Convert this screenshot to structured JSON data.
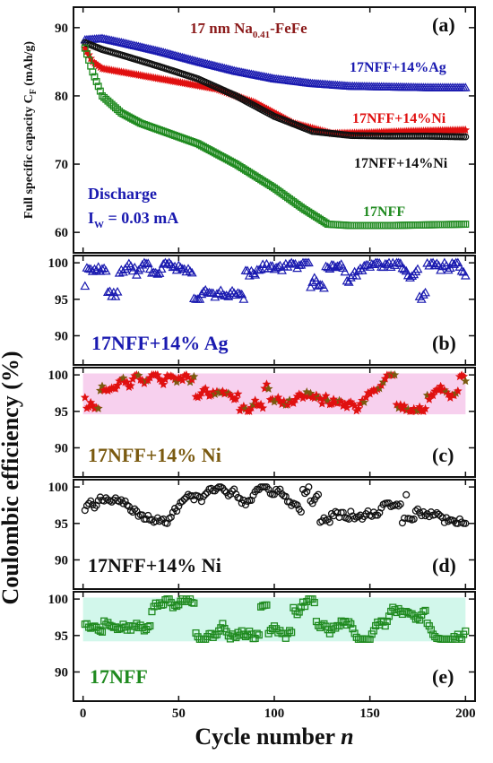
{
  "figure": {
    "ylabel_main": "Coulombic efficiency (%)",
    "xlabel_prefix": "Cycle number ",
    "xlabel_var": "n",
    "x_ticks": [
      "0",
      "50",
      "100",
      "150",
      "200"
    ]
  },
  "colors": {
    "blue": "#1a1ab0",
    "red": "#e01010",
    "black": "#111111",
    "green": "#1f8a1f",
    "darkred": "#8b1a1a",
    "olive": "#7a5a10",
    "pink_band": "#f4c0e8",
    "mint_band": "#bff3e3"
  },
  "panel_a": {
    "title_main": "17 nm Na",
    "title_sub": "0.41",
    "title_rest": "-FeFe",
    "letter": "(a)",
    "ylabel_main": "Full specific capacity C",
    "ylabel_sub": "F",
    "ylabel_unit": " (mAh/g)",
    "discharge_label": "Discharge",
    "current_label_main": "I",
    "current_label_sub": "W",
    "current_label_rest": " = 0.03 mA",
    "y_ticks": [
      "60",
      "70",
      "80",
      "90"
    ],
    "series_labels": {
      "ag": "17NFF+14%Ag",
      "ni_red": "17NFF+14%Ni",
      "ni_black": "17NFF+14%Ni",
      "nff": "17NFF"
    }
  },
  "panel_b": {
    "label": "17NFF+14% Ag",
    "letter": "(b)",
    "y_ticks": [
      "90",
      "95",
      "100"
    ]
  },
  "panel_c": {
    "label": "17NFF+14% Ni",
    "letter": "(c)",
    "y_ticks": [
      "90",
      "95",
      "100"
    ]
  },
  "panel_d": {
    "label": "17NFF+14% Ni",
    "letter": "(d)",
    "y_ticks": [
      "90",
      "95",
      "100"
    ]
  },
  "panel_e": {
    "label": "17NFF",
    "letter": "(e)",
    "y_ticks": [
      "90",
      "95",
      "100"
    ]
  },
  "chart_data": [
    {
      "type": "scatter",
      "panel": "a",
      "title": "17 nm Na0.41-FeFe",
      "xlabel": "Cycle number n",
      "ylabel": "Full specific capacity CF (mAh/g)",
      "xlim": [
        -5,
        205
      ],
      "ylim": [
        57,
        93
      ],
      "series": [
        {
          "name": "17NFF+14%Ag",
          "marker": "triangle",
          "color": "#1a1ab0",
          "x": [
            1,
            10,
            20,
            40,
            60,
            80,
            100,
            120,
            140,
            160,
            180,
            200
          ],
          "y": [
            88.2,
            88.4,
            87.8,
            86.5,
            85.0,
            83.6,
            82.5,
            81.8,
            81.4,
            81.3,
            81.2,
            81.2
          ]
        },
        {
          "name": "17NFF+14%Ni",
          "marker": "star",
          "color": "#e01010",
          "x": [
            1,
            5,
            10,
            20,
            30,
            50,
            70,
            90,
            110,
            130,
            150,
            170,
            200
          ],
          "y": [
            87.0,
            85.0,
            84.0,
            83.5,
            83.0,
            82.0,
            81.0,
            79.0,
            76.0,
            74.5,
            74.6,
            74.8,
            75.0
          ]
        },
        {
          "name": "17NFF+14%Ni",
          "marker": "circle",
          "color": "#111111",
          "x": [
            1,
            10,
            20,
            40,
            60,
            80,
            100,
            120,
            140,
            160,
            180,
            200
          ],
          "y": [
            87.8,
            86.8,
            86.0,
            84.3,
            82.5,
            80.0,
            77.0,
            74.8,
            74.2,
            74.1,
            74.1,
            74.0
          ]
        },
        {
          "name": "17NFF",
          "marker": "square",
          "color": "#1f8a1f",
          "x": [
            1,
            5,
            10,
            20,
            30,
            40,
            60,
            80,
            100,
            115,
            128,
            140,
            160,
            180,
            200
          ],
          "y": [
            87.0,
            83.5,
            80.0,
            77.5,
            76.0,
            75.0,
            73.0,
            70.0,
            66.5,
            63.5,
            61.2,
            61.0,
            61.0,
            61.1,
            61.2
          ]
        }
      ]
    },
    {
      "type": "scatter",
      "panel": "b",
      "xlim": [
        -5,
        205
      ],
      "ylim": [
        86,
        101
      ],
      "series": [
        {
          "name": "17NFF+14% Ag",
          "marker": "triangle",
          "color": "#1a1ab0",
          "x": [
            1,
            200
          ],
          "y_range": [
            95,
            100
          ]
        }
      ]
    },
    {
      "type": "scatter",
      "panel": "c",
      "xlim": [
        -5,
        205
      ],
      "ylim": [
        86,
        101
      ],
      "series": [
        {
          "name": "17NFF+14% Ni",
          "marker": "star",
          "color": "#e01010",
          "x": [
            1,
            200
          ],
          "y_range": [
            95,
            100
          ]
        }
      ]
    },
    {
      "type": "scatter",
      "panel": "d",
      "xlim": [
        -5,
        205
      ],
      "ylim": [
        86,
        101
      ],
      "series": [
        {
          "name": "17NFF+14% Ni",
          "marker": "circle",
          "color": "#111111",
          "x": [
            1,
            200
          ],
          "y_range": [
            95,
            100
          ]
        }
      ]
    },
    {
      "type": "scatter",
      "panel": "e",
      "xlim": [
        -5,
        205
      ],
      "ylim": [
        86,
        101
      ],
      "series": [
        {
          "name": "17NFF",
          "marker": "square",
          "color": "#1f8a1f",
          "x": [
            1,
            200
          ],
          "y_range": [
            94.5,
            100
          ]
        }
      ]
    }
  ]
}
